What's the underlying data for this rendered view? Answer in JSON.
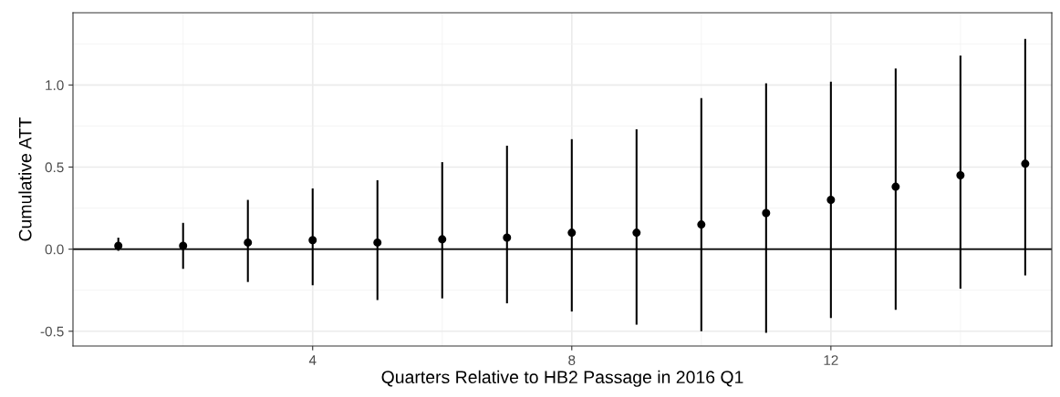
{
  "chart_data": {
    "type": "scatter",
    "xlabel": "Quarters Relative to HB2 Passage in 2016 Q1",
    "ylabel": "Cumulative ATT",
    "x": [
      1,
      2,
      3,
      4,
      5,
      6,
      7,
      8,
      9,
      10,
      11,
      12,
      13,
      14,
      15
    ],
    "values": [
      0.02,
      0.02,
      0.04,
      0.055,
      0.04,
      0.06,
      0.07,
      0.1,
      0.1,
      0.15,
      0.22,
      0.3,
      0.38,
      0.45,
      0.52
    ],
    "errors": [
      [
        -0.01,
        0.07
      ],
      [
        -0.12,
        0.16
      ],
      [
        -0.2,
        0.3
      ],
      [
        -0.22,
        0.37
      ],
      [
        -0.31,
        0.42
      ],
      [
        -0.3,
        0.53
      ],
      [
        -0.33,
        0.63
      ],
      [
        -0.38,
        0.67
      ],
      [
        -0.46,
        0.73
      ],
      [
        -0.5,
        0.92
      ],
      [
        -0.51,
        1.01
      ],
      [
        -0.42,
        1.02
      ],
      [
        -0.37,
        1.1
      ],
      [
        -0.24,
        1.18
      ],
      [
        -0.16,
        1.28
      ]
    ],
    "color": "#000000",
    "marker": "circle",
    "xlim": [
      0.3,
      15.41
    ],
    "ylim": [
      -0.59,
      1.44
    ],
    "xticks": [
      4,
      8,
      12
    ],
    "yticks": [
      {
        "value": -0.5,
        "label": "-0.5"
      },
      {
        "value": 0,
        "label": "0.0"
      },
      {
        "value": 0.5,
        "label": "0.5"
      },
      {
        "value": 1.0,
        "label": "1.0"
      }
    ],
    "ref_lines": [
      {
        "axis": "y",
        "value": 0,
        "color": "#000000"
      }
    ],
    "grid": true
  }
}
